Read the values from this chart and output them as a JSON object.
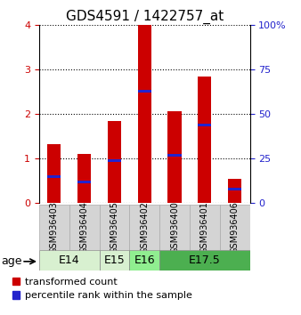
{
  "title": "GDS4591 / 1422757_at",
  "samples": [
    "GSM936403",
    "GSM936404",
    "GSM936405",
    "GSM936402",
    "GSM936400",
    "GSM936401",
    "GSM936406"
  ],
  "transformed_count": [
    1.32,
    1.1,
    1.85,
    4.0,
    2.07,
    2.85,
    0.55
  ],
  "percentile_rank_pct": [
    15,
    12,
    24,
    63,
    27,
    44,
    8
  ],
  "age_groups": [
    {
      "label": "E14",
      "start": 0,
      "end": 2,
      "color": "#d8f0d0"
    },
    {
      "label": "E15",
      "start": 2,
      "end": 3,
      "color": "#d8f0d0"
    },
    {
      "label": "E16",
      "start": 3,
      "end": 4,
      "color": "#90ee90"
    },
    {
      "label": "E17.5",
      "start": 4,
      "end": 7,
      "color": "#4caf50"
    }
  ],
  "bar_color_red": "#cc0000",
  "bar_color_blue": "#2222cc",
  "bar_width": 0.45,
  "blue_bar_thickness": 0.07,
  "ylim_left": [
    0,
    4
  ],
  "ylim_right": [
    0,
    100
  ],
  "yticks_left": [
    0,
    1,
    2,
    3,
    4
  ],
  "yticks_right": [
    0,
    25,
    50,
    75,
    100
  ],
  "background_color": "#ffffff",
  "legend_red_label": "transformed count",
  "legend_blue_label": "percentile rank within the sample",
  "age_label": "age",
  "left_tick_color": "#cc0000",
  "right_tick_color": "#2222cc",
  "title_fontsize": 11,
  "tick_fontsize": 8,
  "legend_fontsize": 8,
  "age_fontsize": 9,
  "sample_fontsize": 7
}
